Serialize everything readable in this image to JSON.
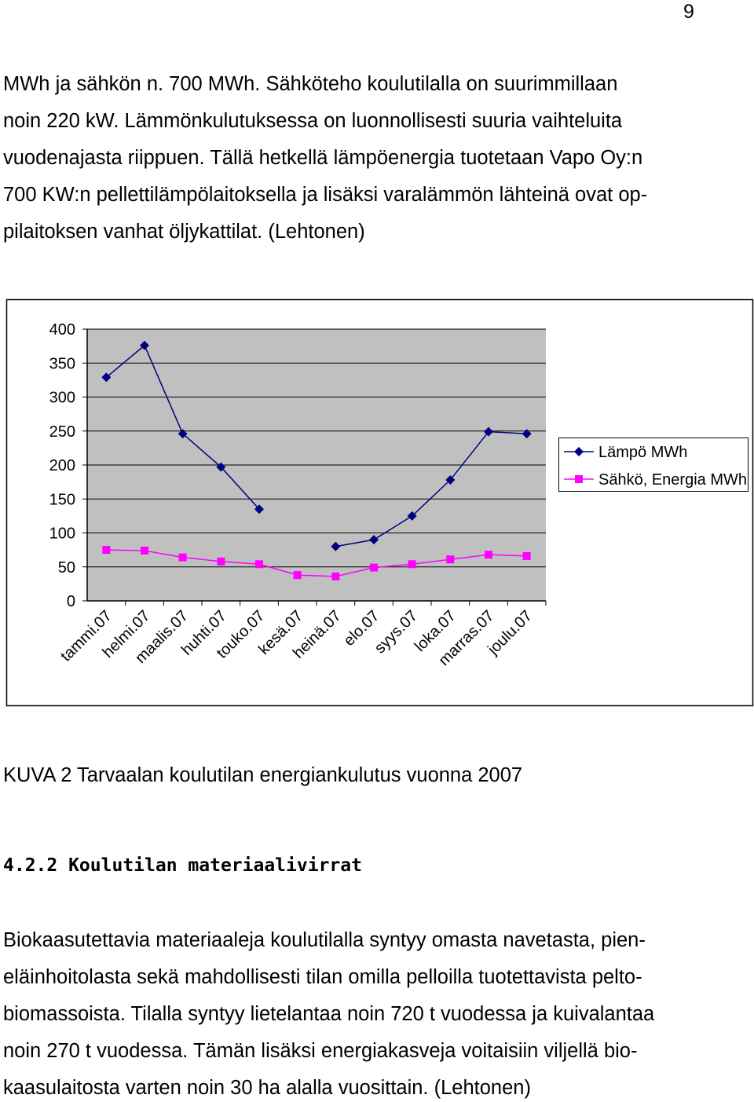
{
  "page_number": "9",
  "paragraph1": [
    "MWh ja sähkön n. 700 MWh. Sähköteho koulutilalla on suurimmillaan",
    "noin 220 kW. Lämmönkulutuksessa on luonnollisesti suuria vaihteluita",
    "vuodenajasta riippuen. Tällä hetkellä lämpöenergia tuotetaan Vapo Oy:n",
    "700 KW:n pellettilämpölaitoksella ja lisäksi varalämmön lähteinä ovat op-",
    "pilaitoksen vanhat öljykattilat. (Lehtonen)"
  ],
  "chart_data": {
    "type": "line",
    "categories": [
      "tammi.07",
      "helmi.07",
      "maalis.07",
      "huhti.07",
      "touko.07",
      "kesä.07",
      "heinä.07",
      "elo.07",
      "syys.07",
      "loka.07",
      "marras.07",
      "joulu.07"
    ],
    "series": [
      {
        "name": "Lämpö MWh",
        "color": "#000080",
        "marker": "diamond",
        "values": [
          329,
          376,
          246,
          197,
          135,
          null,
          80,
          90,
          125,
          178,
          249,
          246
        ]
      },
      {
        "name": "Sähkö, Energia MWh",
        "color": "#ff00ff",
        "marker": "square",
        "values": [
          75,
          74,
          64,
          58,
          54,
          38,
          36,
          49,
          54,
          61,
          68,
          66
        ]
      }
    ],
    "ylim": [
      0,
      400
    ],
    "yticks": [
      0,
      50,
      100,
      150,
      200,
      250,
      300,
      350,
      400
    ],
    "grid": true,
    "legend": "right"
  },
  "caption": "KUVA 2 Tarvaalan koulutilan energiankulutus vuonna 2007",
  "heading": "4.2.2 Koulutilan materiaalivirrat",
  "paragraph2": [
    "Biokaasutettavia materiaaleja koulutilalla syntyy omasta navetasta, pien-",
    "eläinhoitolasta sekä mahdollisesti tilan omilla pelloilla tuotettavista pelto-",
    "biomassoista. Tilalla syntyy lietelantaa noin 720 t vuodessa ja kuivalantaa",
    "noin 270 t vuodessa. Tämän lisäksi energiakasveja voitaisiin viljellä bio-",
    "kaasulaitosta varten noin 30 ha alalla vuosittain. (Lehtonen)"
  ]
}
